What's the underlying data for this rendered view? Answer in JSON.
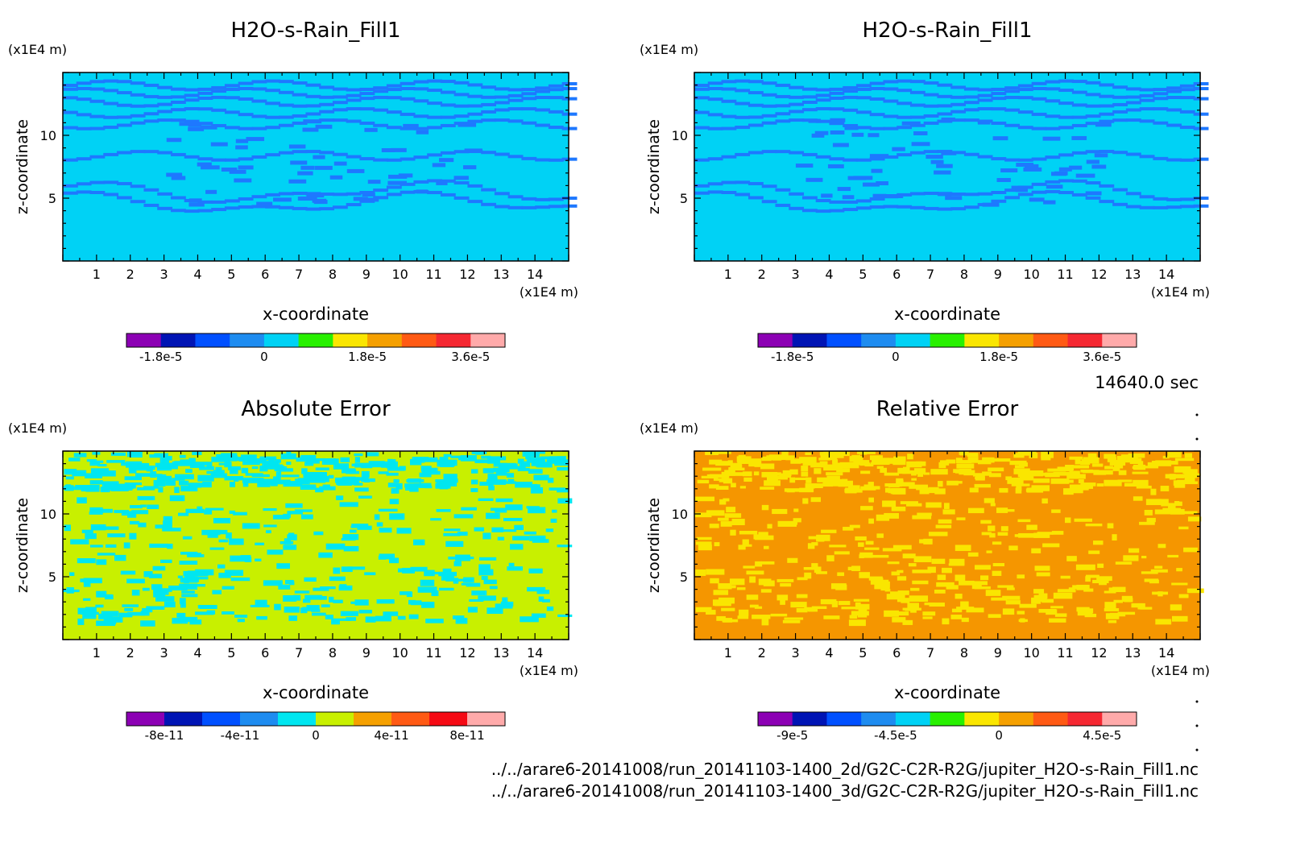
{
  "time_label": "14640.0 sec",
  "files": [
    "../../arare6-20141008/run_20141103-1400_2d/G2C-C2R-R2G/jupiter_H2O-s-Rain_Fill1.nc",
    "../../arare6-20141008/run_20141103-1400_3d/G2C-C2R-R2G/jupiter_H2O-s-Rain_Fill1.nc"
  ],
  "chart_data": [
    {
      "type": "heatmap",
      "title": "H2O-s-Rain_Fill1",
      "xlabel": "x-coordinate",
      "ylabel": "z-coordinate",
      "x_unit": "(x1E4 m)",
      "y_unit": "(x1E4 m)",
      "xlim": [
        0,
        15
      ],
      "ylim": [
        0,
        15
      ],
      "x_ticks": [
        "1",
        "2",
        "3",
        "4",
        "5",
        "6",
        "7",
        "8",
        "9",
        "10",
        "11",
        "12",
        "13",
        "14"
      ],
      "y_ticks": [
        "5",
        "10"
      ],
      "background_color": "#00d2f5",
      "pattern_color": "#1e78ff",
      "colorbar": {
        "colors": [
          "#8c00b4",
          "#0014b4",
          "#0050ff",
          "#1e8cf0",
          "#00d2f5",
          "#28f000",
          "#fae600",
          "#f5a000",
          "#ff5a14",
          "#f52832",
          "#ffaaaa"
        ],
        "tick_labels": [
          "-1.8e-5",
          "0",
          "1.8e-5",
          "3.6e-5"
        ]
      }
    },
    {
      "type": "heatmap",
      "title": "H2O-s-Rain_Fill1",
      "xlabel": "x-coordinate",
      "ylabel": "z-coordinate",
      "x_unit": "(x1E4 m)",
      "y_unit": "(x1E4 m)",
      "xlim": [
        0,
        15
      ],
      "ylim": [
        0,
        15
      ],
      "x_ticks": [
        "1",
        "2",
        "3",
        "4",
        "5",
        "6",
        "7",
        "8",
        "9",
        "10",
        "11",
        "12",
        "13",
        "14"
      ],
      "y_ticks": [
        "5",
        "10"
      ],
      "background_color": "#00d2f5",
      "pattern_color": "#1e78ff",
      "colorbar": {
        "colors": [
          "#8c00b4",
          "#0014b4",
          "#0050ff",
          "#1e8cf0",
          "#00d2f5",
          "#28f000",
          "#fae600",
          "#f5a000",
          "#ff5a14",
          "#f52832",
          "#ffaaaa"
        ],
        "tick_labels": [
          "-1.8e-5",
          "0",
          "1.8e-5",
          "3.6e-5"
        ]
      }
    },
    {
      "type": "heatmap",
      "title": "Absolute Error",
      "xlabel": "x-coordinate",
      "ylabel": "z-coordinate",
      "x_unit": "(x1E4 m)",
      "y_unit": "(x1E4 m)",
      "xlim": [
        0,
        15
      ],
      "ylim": [
        0,
        15
      ],
      "x_ticks": [
        "1",
        "2",
        "3",
        "4",
        "5",
        "6",
        "7",
        "8",
        "9",
        "10",
        "11",
        "12",
        "13",
        "14"
      ],
      "y_ticks": [
        "5",
        "10"
      ],
      "background_color": "#c8f000",
      "pattern_color": "#00e6f0",
      "colorbar": {
        "colors": [
          "#8c00b4",
          "#0014b4",
          "#0050ff",
          "#1e8cf0",
          "#00e6f0",
          "#c8f000",
          "#f5a000",
          "#ff5a14",
          "#f50a14",
          "#ffaaaa"
        ],
        "tick_labels": [
          "-8e-11",
          "-4e-11",
          "0",
          "4e-11",
          "8e-11"
        ]
      }
    },
    {
      "type": "heatmap",
      "title": "Relative Error",
      "xlabel": "x-coordinate",
      "ylabel": "z-coordinate",
      "x_unit": "(x1E4 m)",
      "y_unit": "(x1E4 m)",
      "xlim": [
        0,
        15
      ],
      "ylim": [
        0,
        15
      ],
      "x_ticks": [
        "1",
        "2",
        "3",
        "4",
        "5",
        "6",
        "7",
        "8",
        "9",
        "10",
        "11",
        "12",
        "13",
        "14"
      ],
      "y_ticks": [
        "5",
        "10"
      ],
      "background_color": "#f59600",
      "pattern_color": "#fae600",
      "colorbar": {
        "colors": [
          "#8c00b4",
          "#0014b4",
          "#0050ff",
          "#1e8cf0",
          "#00d2f5",
          "#28f000",
          "#fae600",
          "#f5a000",
          "#ff5a14",
          "#f52832",
          "#ffaaaa"
        ],
        "tick_labels": [
          "-9e-5",
          "-4.5e-5",
          "0",
          "4.5e-5"
        ]
      }
    }
  ]
}
